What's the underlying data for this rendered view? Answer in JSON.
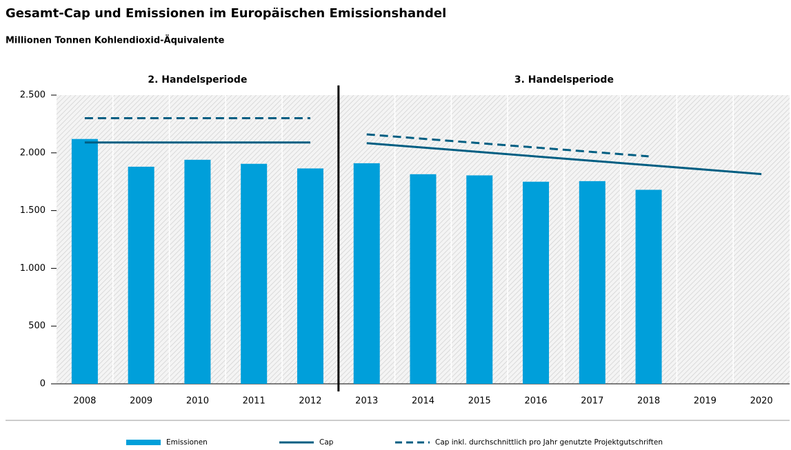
{
  "chart_data": {
    "type": "bar",
    "title": "Gesamt-Cap und Emissionen im Europäischen Emissionshandel",
    "subtitle": "Millionen Tonnen Kohlendioxid-Äquivalente",
    "categories": [
      "2008",
      "2009",
      "2010",
      "2011",
      "2012",
      "2013",
      "2014",
      "2015",
      "2016",
      "2017",
      "2018",
      "2019",
      "2020"
    ],
    "periods": [
      {
        "label": "2. Handelsperiode",
        "count": 5
      },
      {
        "label": "3. Handelsperiode",
        "count": 8
      }
    ],
    "series": [
      {
        "name": "Emissionen",
        "type": "bar",
        "color": "#009fda",
        "values": [
          2120,
          1880,
          1940,
          1905,
          1865,
          1910,
          1815,
          1805,
          1750,
          1755,
          1680,
          null,
          null
        ]
      },
      {
        "name": "Cap",
        "type": "line",
        "color": "#005e82",
        "dashed": false,
        "values": [
          2090,
          2090,
          2090,
          2090,
          2090,
          2084,
          2046,
          2008,
          1969,
          1931,
          1893,
          1855,
          1816
        ]
      },
      {
        "name": "Cap inkl. durchschnittlich pro Jahr genutzte Projektgutschriften",
        "type": "line",
        "color": "#005e82",
        "dashed": true,
        "values": [
          2300,
          2300,
          2300,
          2300,
          2300,
          2160,
          2122,
          2084,
          2046,
          2008,
          1970,
          null,
          null
        ]
      }
    ],
    "ylim": [
      0,
      2500
    ],
    "yticks": [
      0,
      500,
      {
        "value": 1000,
        "label": "1.000"
      },
      {
        "value": 1500,
        "label": "1.500"
      },
      {
        "value": 2000,
        "label": "2.000"
      },
      {
        "value": 2500,
        "label": "2.500"
      }
    ]
  }
}
